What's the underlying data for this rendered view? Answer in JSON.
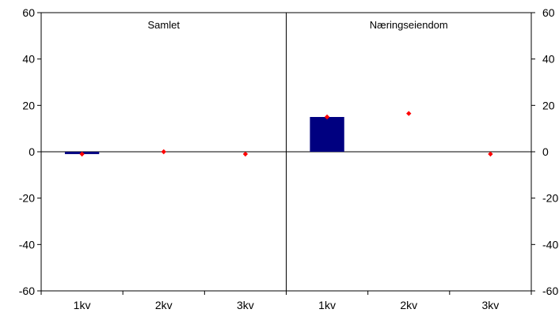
{
  "chart_data": {
    "type": "bar",
    "panels": [
      {
        "title": "Samlet",
        "categories": [
          "1kv",
          "2kv",
          "3kv"
        ],
        "bar_values": [
          -1,
          null,
          null
        ],
        "marker_values": [
          -1,
          0,
          -1
        ]
      },
      {
        "title": "Næringseiendom",
        "categories": [
          "1kv",
          "2kv",
          "3kv"
        ],
        "bar_values": [
          15,
          null,
          null
        ],
        "marker_values": [
          15,
          16.5,
          -1
        ]
      }
    ],
    "ylim": [
      -60,
      60
    ],
    "yticks": [
      "60",
      "40",
      "20",
      "0",
      "-20",
      "-40",
      "-60"
    ],
    "bar_color": "#000080",
    "marker_color": "#ff0000",
    "grid": false
  }
}
